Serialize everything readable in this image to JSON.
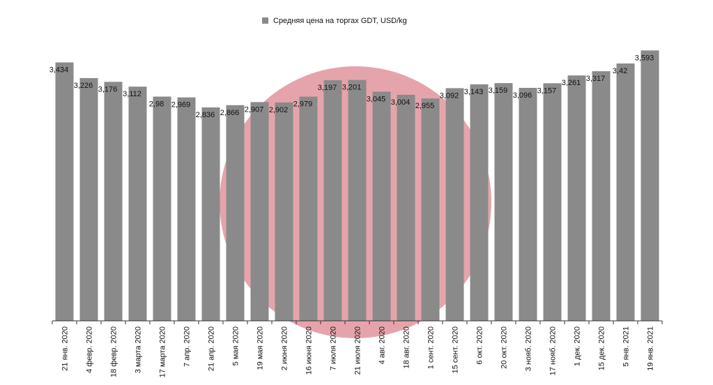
{
  "chart_data": {
    "type": "bar",
    "categories": [
      "21 янв. 2020",
      "4 февр. 2020",
      "18 февр. 2020",
      "3 марта 2020",
      "17 марта 2020",
      "7 апр. 2020",
      "21 апр. 2020",
      "5 мая 2020",
      "19 мая 2020",
      "2 июня 2020",
      "16 июня 2020",
      "7 июля 2020",
      "21 июля 2020",
      "4 авг. 2020",
      "18 авг. 2020",
      "1 сент. 2020",
      "15 сент. 2020",
      "6 окт. 2020",
      "20 окт. 2020",
      "3 нояб. 2020",
      "17 нояб. 2020",
      "1 дек. 2020",
      "15 дек. 2020",
      "5 янв. 2021",
      "19 янв. 2021"
    ],
    "series": [
      {
        "name": "Средняя цена на торгах GDT,  USD/kg",
        "color": "#8a8a8a",
        "values": [
          3.434,
          3.226,
          3.176,
          3.112,
          2.98,
          2.969,
          2.836,
          2.866,
          2.907,
          2.902,
          2.979,
          3.197,
          3.201,
          3.045,
          3.004,
          2.955,
          3.092,
          3.143,
          3.159,
          3.096,
          3.157,
          3.261,
          3.317,
          3.42,
          3.593
        ],
        "value_labels": [
          "3,434",
          "3,226",
          "3,176",
          "3,112",
          "2,98",
          "2,969",
          "2,836",
          "2,866",
          "2,907",
          "2,902",
          "2,979",
          "3,197",
          "3,201",
          "3,045",
          "3,004",
          "2,955",
          "3,092",
          "3,143",
          "3,159",
          "3,096",
          "3,157",
          "3,261",
          "3,317",
          "3,42",
          "3,593"
        ]
      }
    ],
    "ylim": [
      0,
      3.8
    ],
    "legend": "top"
  }
}
